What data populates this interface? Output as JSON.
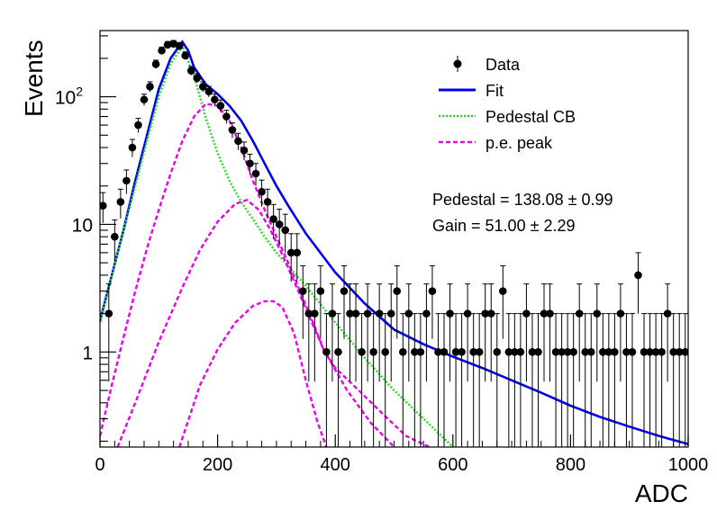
{
  "chart_data": {
    "type": "scatter",
    "xlabel": "ADC",
    "ylabel": "Events",
    "xlim": [
      0,
      1000
    ],
    "ylim": [
      0.18,
      330
    ],
    "y_scale": "log",
    "x_ticks": [
      {
        "value": 0,
        "label": "0"
      },
      {
        "value": 200,
        "label": "200"
      },
      {
        "value": 400,
        "label": "400"
      },
      {
        "value": 600,
        "label": "600"
      },
      {
        "value": 800,
        "label": "800"
      },
      {
        "value": 1000,
        "label": "1000"
      }
    ],
    "y_ticks": [
      {
        "value": 1,
        "label": "1"
      },
      {
        "value": 10,
        "label": "10"
      },
      {
        "value": 100,
        "label": "10",
        "sup": "2"
      }
    ],
    "grid": false,
    "legend_position": "top-right",
    "legend": [
      {
        "label": "Data",
        "style": "marker"
      },
      {
        "label": "Fit",
        "style": "solid",
        "color": "#0000ee"
      },
      {
        "label": "Pedestal CB",
        "style": "dotted",
        "color": "#22dd22"
      },
      {
        "label": "p.e. peak",
        "style": "dashed",
        "color": "#ee00ee"
      }
    ],
    "annotations": [
      {
        "name": "pedestal",
        "text": "Pedestal = 138.08",
        "pm": "0.99"
      },
      {
        "name": "gain",
        "text": "Gain = 51.00",
        "pm": "2.29"
      }
    ],
    "series": [
      {
        "name": "Data",
        "kind": "points_with_errors",
        "color": "#000000",
        "x": [
          5,
          15,
          25,
          35,
          45,
          55,
          65,
          75,
          85,
          95,
          105,
          115,
          125,
          135,
          145,
          155,
          165,
          175,
          185,
          195,
          205,
          215,
          225,
          235,
          245,
          255,
          265,
          275,
          285,
          295,
          305,
          315,
          325,
          335,
          345,
          355,
          365,
          375,
          385,
          395,
          405,
          415,
          425,
          435,
          445,
          455,
          465,
          475,
          485,
          495,
          505,
          515,
          525,
          535,
          545,
          555,
          565,
          575,
          585,
          595,
          605,
          615,
          625,
          635,
          645,
          655,
          665,
          675,
          685,
          695,
          705,
          715,
          725,
          735,
          745,
          755,
          765,
          775,
          785,
          795,
          805,
          815,
          825,
          835,
          845,
          855,
          865,
          875,
          885,
          895,
          905,
          915,
          925,
          935,
          945,
          955,
          965,
          975,
          985,
          995
        ],
        "y": [
          14,
          2,
          8,
          15,
          22,
          40,
          60,
          95,
          120,
          180,
          230,
          255,
          260,
          250,
          210,
          160,
          140,
          120,
          110,
          95,
          85,
          70,
          55,
          45,
          38,
          30,
          25,
          18,
          15,
          11,
          10,
          9,
          6,
          6,
          3,
          2,
          2,
          3,
          1,
          2,
          1,
          3,
          2,
          2,
          1,
          2,
          1,
          2,
          1,
          2,
          3,
          1,
          2,
          1,
          1,
          2,
          3,
          1,
          1,
          2,
          1,
          1,
          2,
          1,
          1,
          2,
          2,
          1,
          3,
          1,
          1,
          1,
          2,
          1,
          1,
          2,
          2,
          1,
          1,
          1,
          1,
          2,
          1,
          1,
          2,
          1,
          1,
          1,
          2,
          1,
          1,
          4,
          1,
          1,
          1,
          1,
          2,
          1,
          1,
          1
        ]
      },
      {
        "name": "Fit",
        "kind": "line",
        "color": "#0000ee",
        "x": [
          0,
          20,
          40,
          60,
          80,
          100,
          120,
          140,
          150,
          160,
          180,
          200,
          220,
          240,
          260,
          280,
          300,
          320,
          350,
          400,
          450,
          500,
          550,
          600,
          650,
          700,
          750,
          800,
          850,
          900,
          950,
          1000
        ],
        "y": [
          1.75,
          4,
          9,
          22,
          50,
          115,
          200,
          270,
          230,
          170,
          125,
          105,
          85,
          65,
          45,
          30,
          20,
          14,
          8.5,
          4.2,
          2.4,
          1.5,
          1.15,
          0.92,
          0.75,
          0.6,
          0.48,
          0.38,
          0.31,
          0.26,
          0.22,
          0.19
        ]
      },
      {
        "name": "Pedestal CB",
        "kind": "line",
        "color": "#22dd22",
        "x": [
          0,
          20,
          40,
          60,
          80,
          100,
          120,
          140,
          160,
          180,
          200,
          220,
          240,
          260,
          280,
          300,
          350,
          400,
          450,
          500,
          550,
          600
        ],
        "y": [
          1.7,
          4,
          9,
          20,
          45,
          100,
          180,
          250,
          145,
          68,
          36,
          22,
          15,
          11,
          8,
          6,
          3.3,
          1.7,
          0.9,
          0.5,
          0.3,
          0.18
        ]
      },
      {
        "name": "p.e. peak",
        "kind": "line",
        "color": "#ee00ee",
        "x": [
          0,
          20,
          40,
          60,
          80,
          100,
          120,
          140,
          160,
          180,
          200,
          220,
          240,
          260,
          280,
          300,
          320,
          340,
          360,
          380,
          400,
          440,
          480,
          520,
          560
        ],
        "y": [
          0.22,
          0.55,
          1.3,
          3,
          6.5,
          13,
          25,
          45,
          70,
          88,
          85,
          65,
          40,
          22,
          13,
          8,
          5,
          3,
          1.8,
          1.05,
          0.75,
          0.5,
          0.33,
          0.22,
          0.18
        ]
      },
      {
        "name": "p.e. peak",
        "kind": "line",
        "color": "#ee00ee",
        "x": [
          30,
          60,
          100,
          140,
          170,
          200,
          230,
          250,
          270,
          290,
          310,
          340,
          380,
          420,
          460,
          500
        ],
        "y": [
          0.18,
          0.4,
          1.2,
          3.2,
          6.3,
          10.5,
          14.5,
          15.5,
          13,
          9,
          5.8,
          2.8,
          1.05,
          0.5,
          0.28,
          0.18
        ]
      },
      {
        "name": "p.e. peak",
        "kind": "line",
        "color": "#ee00ee",
        "x": [
          135,
          170,
          200,
          230,
          260,
          280,
          295,
          310,
          330,
          350,
          370,
          385
        ],
        "y": [
          0.18,
          0.55,
          1.05,
          1.7,
          2.3,
          2.5,
          2.5,
          2.25,
          1.4,
          0.6,
          0.28,
          0.18
        ]
      }
    ]
  }
}
